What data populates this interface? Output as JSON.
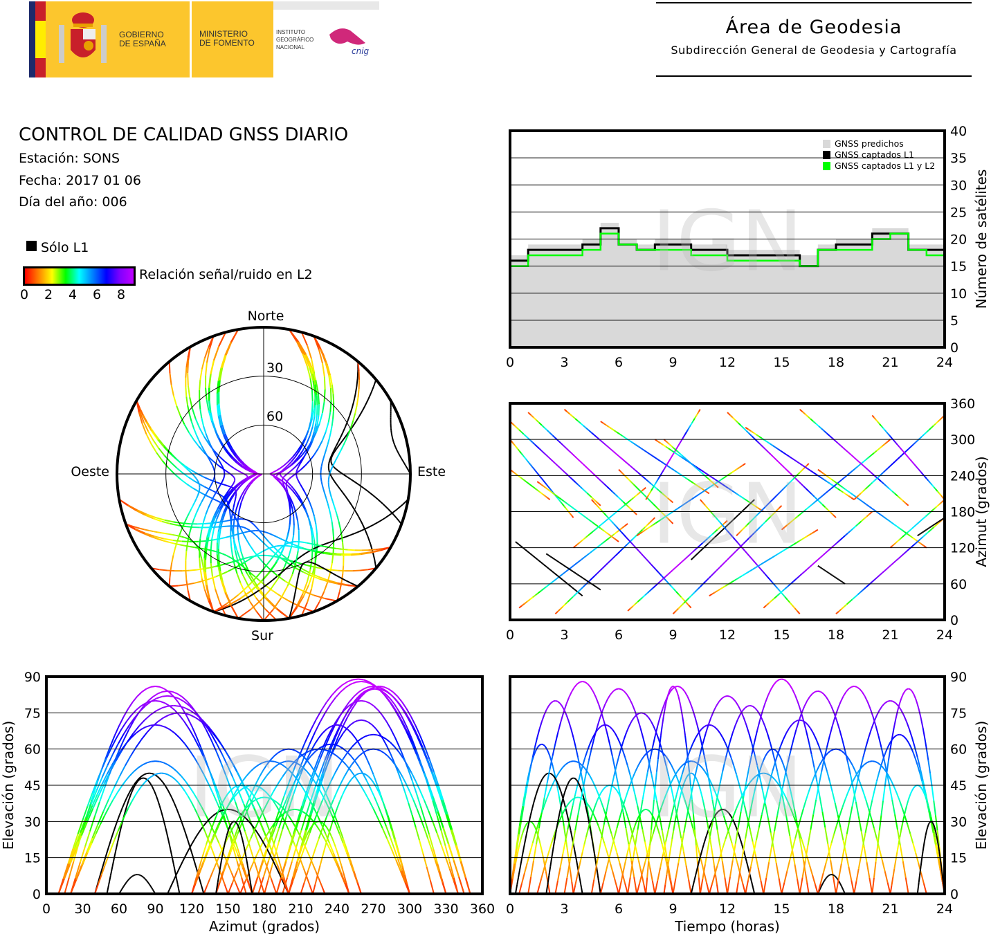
{
  "header": {
    "gov_line1": "GOBIERNO",
    "gov_line2": "DE ESPAÑA",
    "min_line1": "MINISTERIO",
    "min_line2": "DE FOMENTO",
    "ign_line1": "INSTITUTO",
    "ign_line2": "GEOGRÁFICO",
    "ign_line3": "NACIONAL",
    "cnig": "cnig",
    "area_title": "Área de Geodesia",
    "area_subtitle": "Subdirección General de Geodesia y Cartografía"
  },
  "report": {
    "title": "CONTROL DE CALIDAD GNSS DIARIO",
    "station": "Estación: SONS",
    "date": "Fecha: 2017 01 06",
    "doy": "Día del año: 006"
  },
  "legend": {
    "l1_only": "Sólo L1",
    "snr_label": "Relación señal/ruido en L2",
    "snr_ticks": [
      "0",
      "2",
      "4",
      "6",
      "8"
    ],
    "colors": {
      "l1_only": "#000000",
      "predicted": "#d9d9d9",
      "captured_l1": "#000000",
      "captured_l1l2": "#00ff00"
    }
  },
  "watermark": "IGN",
  "chart_data": [
    {
      "id": "satellite-count",
      "type": "area",
      "xlim": [
        0,
        24
      ],
      "ylim": [
        0,
        40
      ],
      "xticks": [
        "0",
        "3",
        "6",
        "9",
        "12",
        "15",
        "18",
        "21",
        "24"
      ],
      "yticks": [
        "0",
        "5",
        "10",
        "15",
        "20",
        "25",
        "30",
        "35",
        "40"
      ],
      "ylabel": "Número de satélites",
      "grid": true,
      "legend_position": "top-right",
      "x": [
        0,
        1,
        2,
        3,
        4,
        5,
        6,
        7,
        8,
        9,
        10,
        11,
        12,
        13,
        14,
        15,
        16,
        17,
        18,
        19,
        20,
        21,
        22,
        23,
        24
      ],
      "series": [
        {
          "name": "GNSS predichos",
          "values": [
            17,
            19,
            19,
            19,
            20,
            23,
            20,
            19,
            20,
            20,
            19,
            19,
            18,
            18,
            18,
            18,
            17,
            19,
            20,
            20,
            22,
            22,
            19,
            19,
            17
          ]
        },
        {
          "name": "GNSS captados L1",
          "values": [
            16,
            18,
            18,
            18,
            19,
            22,
            19,
            18,
            19,
            19,
            18,
            18,
            17,
            17,
            17,
            17,
            15,
            18,
            19,
            19,
            21,
            21,
            18,
            18,
            15
          ]
        },
        {
          "name": "GNSS captados L1 y L2",
          "values": [
            15,
            17,
            17,
            17,
            18,
            21,
            19,
            18,
            18,
            18,
            17,
            17,
            16,
            16,
            16,
            16,
            15,
            18,
            18,
            18,
            20,
            21,
            18,
            17,
            14
          ]
        }
      ]
    },
    {
      "id": "satellite-passes",
      "type": "line",
      "fields": [
        "rise_hour",
        "set_hour",
        "max_elevation",
        "rise_azimuth",
        "set_azimuth",
        "l1_only"
      ],
      "passes": [
        [
          0,
          3.5,
          62,
          300,
          170,
          false
        ],
        [
          0,
          2.2,
          30,
          250,
          200,
          false
        ],
        [
          0,
          5,
          80,
          330,
          190,
          false
        ],
        [
          0.5,
          6.5,
          55,
          20,
          160,
          false
        ],
        [
          0.3,
          4,
          50,
          130,
          40,
          true
        ],
        [
          1,
          7,
          88,
          345,
          175,
          false
        ],
        [
          1.5,
          6,
          40,
          230,
          130,
          false
        ],
        [
          2.5,
          8,
          70,
          10,
          170,
          false
        ],
        [
          2,
          5,
          48,
          110,
          50,
          true
        ],
        [
          3,
          9,
          85,
          350,
          195,
          false
        ],
        [
          3.5,
          7.5,
          45,
          120,
          220,
          false
        ],
        [
          4.5,
          10,
          75,
          200,
          20,
          false
        ],
        [
          5,
          11,
          60,
          330,
          210,
          false
        ],
        [
          6,
          9,
          35,
          250,
          160,
          false
        ],
        [
          6.5,
          12,
          86,
          15,
          165,
          false
        ],
        [
          7,
          13,
          55,
          140,
          260,
          false
        ],
        [
          7.5,
          10.5,
          86,
          200,
          350,
          false
        ],
        [
          8,
          14,
          70,
          300,
          180,
          false
        ],
        [
          9,
          15,
          82,
          10,
          190,
          false
        ],
        [
          10,
          13.5,
          35,
          100,
          200,
          true
        ],
        [
          10.5,
          16,
          78,
          200,
          10,
          false
        ],
        [
          11,
          17,
          50,
          40,
          150,
          false
        ],
        [
          12,
          18,
          89,
          345,
          170,
          false
        ],
        [
          12.5,
          16.5,
          60,
          140,
          260,
          false
        ],
        [
          13,
          19,
          72,
          320,
          200,
          false
        ],
        [
          14,
          20,
          84,
          20,
          180,
          false
        ],
        [
          15,
          21,
          60,
          150,
          300,
          false
        ],
        [
          16,
          22,
          86,
          350,
          190,
          false
        ],
        [
          17,
          18.5,
          8,
          90,
          60,
          true
        ],
        [
          17,
          23,
          55,
          250,
          120,
          false
        ],
        [
          18,
          24,
          80,
          10,
          170,
          false
        ],
        [
          19,
          24,
          66,
          200,
          340,
          false
        ],
        [
          20,
          24,
          85,
          340,
          200,
          false
        ],
        [
          21,
          24,
          45,
          120,
          200,
          false
        ],
        [
          22.5,
          24,
          30,
          140,
          170,
          true
        ],
        [
          8.5,
          11.5,
          50,
          300,
          220,
          false
        ]
      ]
    },
    {
      "id": "azimuth-time",
      "type": "scatter",
      "xlim": [
        0,
        24
      ],
      "ylim": [
        0,
        360
      ],
      "xticks": [
        "0",
        "3",
        "6",
        "9",
        "12",
        "15",
        "18",
        "21",
        "24"
      ],
      "yticks": [
        "0",
        "60",
        "120",
        "180",
        "240",
        "300",
        "360"
      ],
      "ylabel": "Azimut (grados)",
      "grid": true
    },
    {
      "id": "elevation-azimuth",
      "type": "scatter",
      "xlim": [
        0,
        360
      ],
      "ylim": [
        0,
        90
      ],
      "xticks": [
        "0",
        "30",
        "60",
        "90",
        "120",
        "150",
        "180",
        "210",
        "240",
        "270",
        "300",
        "330",
        "360"
      ],
      "yticks": [
        "0",
        "15",
        "30",
        "45",
        "60",
        "75",
        "90"
      ],
      "xlabel": "Azimut (grados)",
      "ylabel": "Elevación (grados)",
      "grid": true
    },
    {
      "id": "elevation-time",
      "type": "scatter",
      "xlim": [
        0,
        24
      ],
      "ylim": [
        0,
        90
      ],
      "xticks": [
        "0",
        "3",
        "6",
        "9",
        "12",
        "15",
        "18",
        "21",
        "24"
      ],
      "yticks": [
        "0",
        "15",
        "30",
        "45",
        "60",
        "75",
        "90"
      ],
      "xlabel": "Tiempo (horas)",
      "ylabel": "Elevación (grados)",
      "grid": true
    },
    {
      "id": "skyplot",
      "type": "scatter",
      "directions": {
        "north": "Norte",
        "south": "Sur",
        "east": "Este",
        "west": "Oeste"
      },
      "rings": [
        "30",
        "60"
      ]
    }
  ]
}
